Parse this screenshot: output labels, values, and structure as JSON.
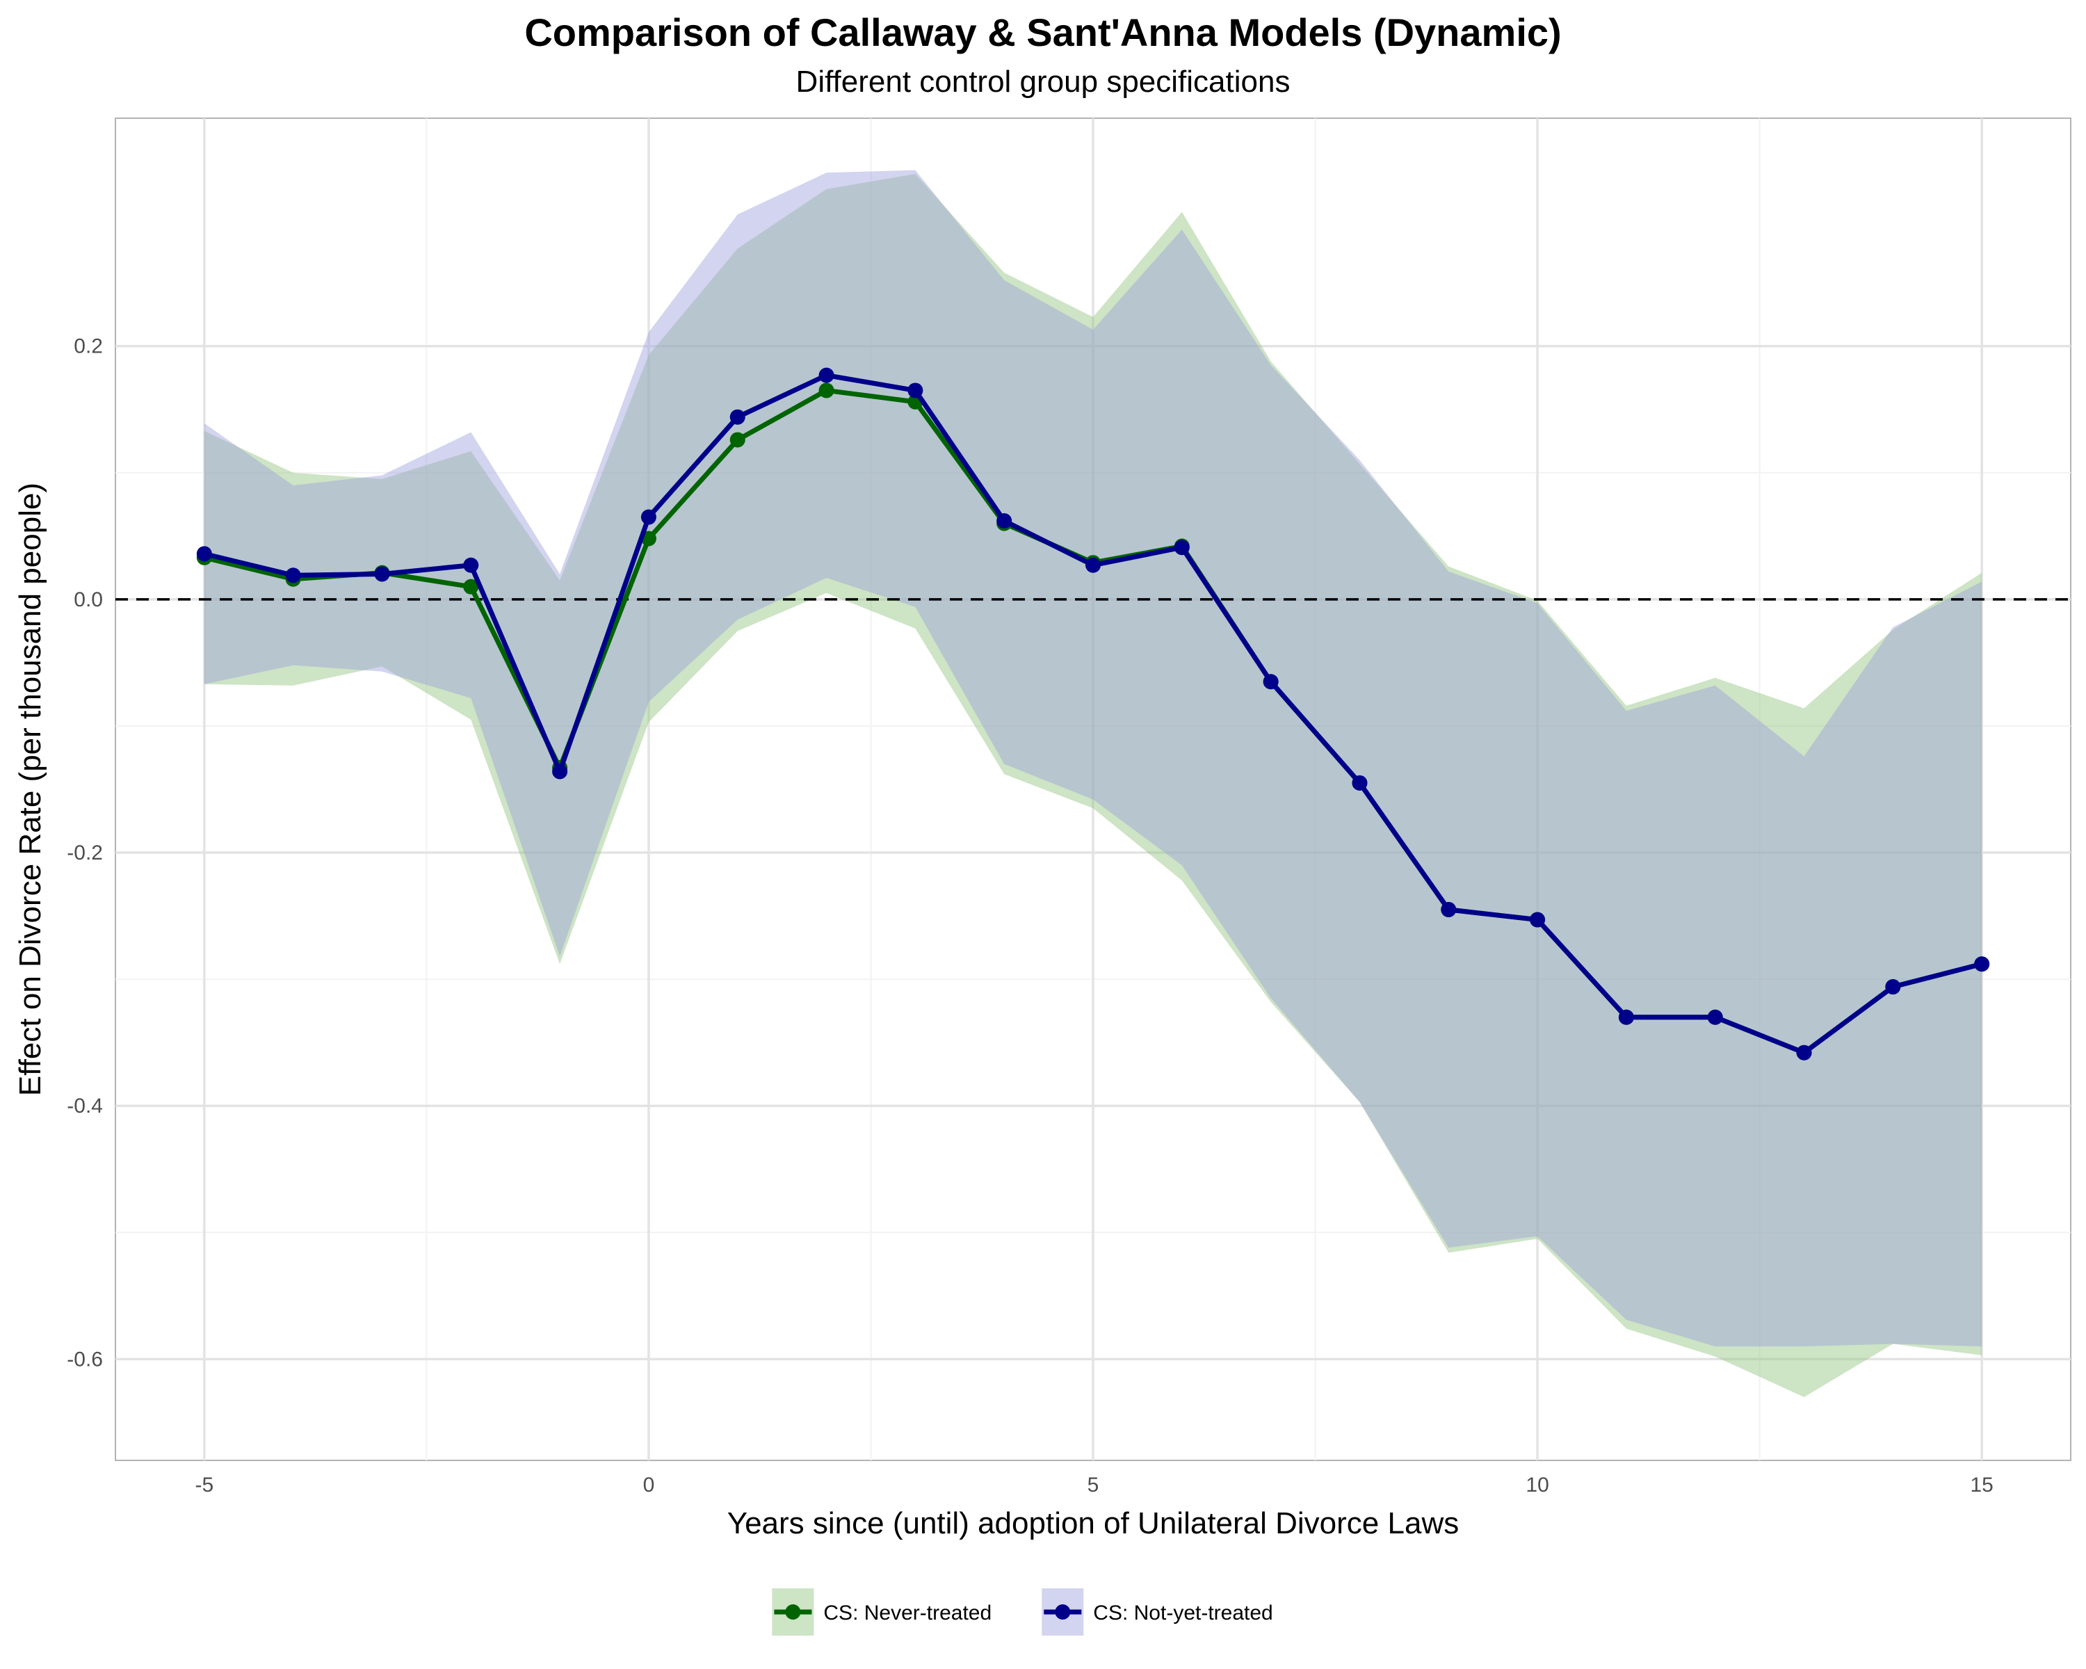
{
  "chart_data": {
    "type": "line",
    "title": "Comparison of Callaway & Sant'Anna Models (Dynamic)",
    "subtitle": "Different control group specifications",
    "xlabel": "Years since (until) adoption of Unilateral Divorce Laws",
    "ylabel": "Effect on Divorce Rate (per thousand people)",
    "xlim": [
      -6.0,
      16.0
    ],
    "ylim": [
      -0.68,
      0.38
    ],
    "xticks": [
      -5,
      0,
      5,
      10,
      15
    ],
    "xtick_labels": [
      "-5",
      "0",
      "5",
      "10",
      "15"
    ],
    "yticks": [
      -0.6,
      -0.4,
      -0.2,
      0.0,
      0.2
    ],
    "ytick_labels": [
      "-0.6",
      "-0.4",
      "-0.2",
      "0.0",
      "0.2"
    ],
    "grid": true,
    "reference_line": {
      "y": 0,
      "style": "dashed"
    },
    "legend_position": "bottom",
    "x": [
      -5,
      -4,
      -3,
      -2,
      -1,
      0,
      1,
      2,
      3,
      4,
      5,
      6,
      7,
      8,
      9,
      10,
      11,
      12,
      13,
      14,
      15
    ],
    "series": [
      {
        "name": "CS: Never-treated",
        "line_color": "#006400",
        "band_color": "#90c47f",
        "values": [
          0.033,
          0.016,
          0.021,
          0.01,
          -0.133,
          0.048,
          0.126,
          0.165,
          0.156,
          0.06,
          0.029,
          0.042,
          -0.065,
          -0.145,
          -0.245,
          -0.253,
          -0.33,
          -0.33,
          -0.358,
          -0.306,
          -0.288
        ],
        "lower": [
          -0.067,
          -0.068,
          -0.053,
          -0.095,
          -0.288,
          -0.097,
          -0.025,
          0.005,
          -0.023,
          -0.138,
          -0.165,
          -0.222,
          -0.318,
          -0.397,
          -0.516,
          -0.505,
          -0.576,
          -0.598,
          -0.63,
          -0.588,
          -0.597
        ],
        "upper": [
          0.133,
          0.1,
          0.095,
          0.117,
          0.015,
          0.193,
          0.277,
          0.324,
          0.336,
          0.258,
          0.223,
          0.306,
          0.188,
          0.107,
          0.026,
          -0.001,
          -0.084,
          -0.062,
          -0.086,
          -0.024,
          0.021
        ]
      },
      {
        "name": "CS: Not-yet-treated",
        "line_color": "#00008b",
        "band_color": "#9e9fdc",
        "values": [
          0.036,
          0.019,
          0.02,
          0.027,
          -0.136,
          0.065,
          0.144,
          0.177,
          0.165,
          0.062,
          0.027,
          0.041,
          -0.065,
          -0.145,
          -0.245,
          -0.253,
          -0.33,
          -0.33,
          -0.358,
          -0.306,
          -0.288
        ],
        "lower": [
          -0.067,
          -0.052,
          -0.057,
          -0.078,
          -0.282,
          -0.081,
          -0.016,
          0.017,
          -0.006,
          -0.13,
          -0.158,
          -0.21,
          -0.315,
          -0.397,
          -0.512,
          -0.503,
          -0.569,
          -0.59,
          -0.59,
          -0.588,
          -0.59
        ],
        "upper": [
          0.139,
          0.09,
          0.098,
          0.132,
          0.02,
          0.211,
          0.304,
          0.337,
          0.339,
          0.252,
          0.213,
          0.292,
          0.185,
          0.11,
          0.022,
          -0.003,
          -0.088,
          -0.068,
          -0.124,
          -0.022,
          0.014
        ]
      }
    ]
  }
}
